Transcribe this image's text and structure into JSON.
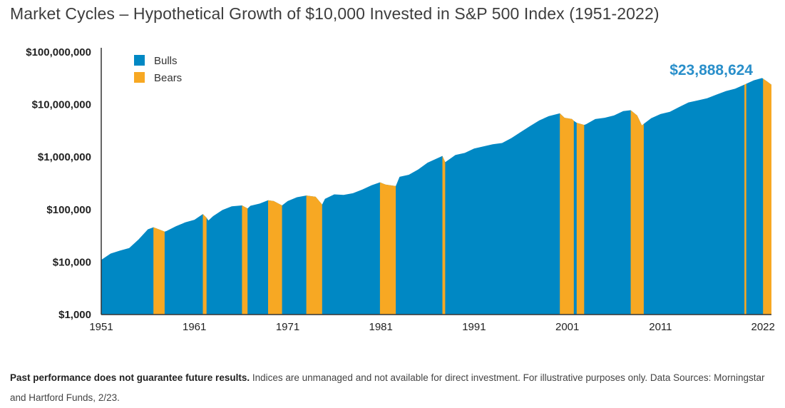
{
  "title": "Market Cycles – Hypothetical Growth of $10,000 Invested in S&P 500 Index (1951-2022)",
  "footnote": {
    "bold": "Past performance does not guarantee future results.",
    "text": " Indices are unmanaged and not available for direct investment. For illustrative purposes only. Data Sources: Morningstar and Hartford Funds, 2/23."
  },
  "colors": {
    "bulls": "#0088c4",
    "bears": "#f7a823",
    "final_label": "#2a8fca"
  },
  "chart_data": {
    "type": "area",
    "title": "",
    "xlabel": "",
    "ylabel": "",
    "yscale": "log",
    "ylim": [
      1000,
      100000000
    ],
    "xlim": [
      1951,
      2022.9
    ],
    "y_tick_values": [
      1000,
      10000,
      100000,
      1000000,
      10000000,
      100000000
    ],
    "y_tick_labels": [
      "$1,000",
      "$10,000",
      "$100,000",
      "$1,000,000",
      "$10,000,000",
      "$100,000,000"
    ],
    "x_tick_values": [
      1951,
      1961,
      1971,
      1981,
      1991,
      2001,
      2011,
      2022
    ],
    "x_tick_labels": [
      "1951",
      "1961",
      "1971",
      "1981",
      "1991",
      "2001",
      "2011",
      "2022"
    ],
    "legend": [
      {
        "name": "Bulls",
        "color": "#0088c4"
      },
      {
        "name": "Bears",
        "color": "#f7a823"
      }
    ],
    "legend_position": "top-left",
    "final_value_label": "$23,888,624",
    "grid": false,
    "series": [
      {
        "name": "Growth of $10,000",
        "x": [
          1951.0,
          1952.0,
          1953.0,
          1954.0,
          1955.0,
          1956.0,
          1956.6,
          1957.5,
          1957.8,
          1958.0,
          1959.0,
          1960.0,
          1961.0,
          1961.9,
          1962.3,
          1962.5,
          1963.0,
          1964.0,
          1965.0,
          1966.1,
          1966.7,
          1967.0,
          1968.0,
          1968.9,
          1969.5,
          1970.4,
          1971.0,
          1972.0,
          1973.0,
          1974.0,
          1974.7,
          1975.0,
          1976.0,
          1977.0,
          1978.0,
          1979.0,
          1980.0,
          1980.9,
          1981.5,
          1982.6,
          1983.0,
          1984.0,
          1985.0,
          1986.0,
          1987.6,
          1987.9,
          1988.0,
          1989.0,
          1990.0,
          1991.0,
          1992.0,
          1993.0,
          1994.0,
          1995.0,
          1996.0,
          1997.0,
          1998.0,
          1999.0,
          2000.2,
          2000.7,
          2001.5,
          2001.7,
          2002.0,
          2002.8,
          2003.0,
          2004.0,
          2005.0,
          2006.0,
          2007.0,
          2007.8,
          2008.5,
          2009.0,
          2009.2,
          2010.0,
          2011.0,
          2012.0,
          2013.0,
          2014.0,
          2015.0,
          2016.0,
          2017.0,
          2018.0,
          2019.0,
          2020.0,
          2021.0,
          2021.9,
          2022.5,
          2022.9
        ],
        "y": [
          11000,
          14500,
          16500,
          18500,
          27000,
          42000,
          46000,
          40000,
          38000,
          39000,
          48000,
          57000,
          64000,
          82000,
          70000,
          62000,
          75000,
          98000,
          115000,
          120000,
          105000,
          118000,
          130000,
          150000,
          145000,
          120000,
          145000,
          172000,
          185000,
          175000,
          125000,
          160000,
          195000,
          190000,
          205000,
          240000,
          290000,
          330000,
          300000,
          280000,
          420000,
          460000,
          580000,
          780000,
          1050000,
          800000,
          820000,
          1100000,
          1200000,
          1450000,
          1600000,
          1750000,
          1850000,
          2300000,
          3000000,
          3900000,
          5000000,
          6000000,
          6800000,
          5600000,
          5300000,
          4900000,
          4500000,
          4100000,
          4200000,
          5300000,
          5600000,
          6200000,
          7500000,
          7800000,
          6200000,
          4000000,
          4300000,
          5500000,
          6600000,
          7300000,
          9000000,
          11000000,
          12000000,
          13200000,
          15500000,
          18000000,
          20000000,
          24000000,
          29000000,
          32000000,
          27000000,
          23888624
        ]
      }
    ],
    "bear_periods": [
      [
        1956.6,
        1957.8
      ],
      [
        1961.9,
        1962.3
      ],
      [
        1966.1,
        1966.7
      ],
      [
        1968.9,
        1970.4
      ],
      [
        1973.0,
        1974.7
      ],
      [
        1980.9,
        1982.6
      ],
      [
        1987.6,
        1987.9
      ],
      [
        2000.2,
        2001.7
      ],
      [
        2002.0,
        2002.8
      ],
      [
        2007.8,
        2009.2
      ],
      [
        2020.0,
        2020.2
      ],
      [
        2022.0,
        2022.9
      ]
    ]
  }
}
